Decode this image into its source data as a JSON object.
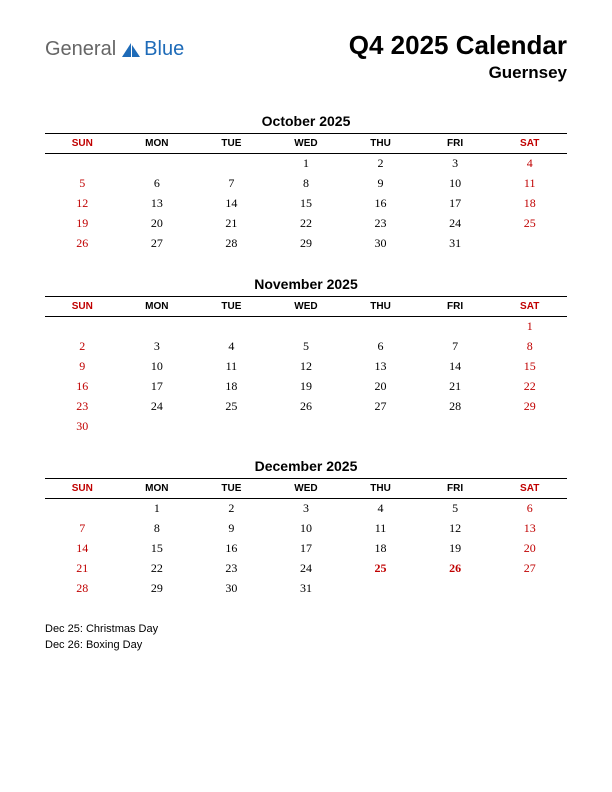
{
  "logo": {
    "text_general": "General",
    "text_blue": "Blue",
    "icon_color": "#1e6bb8"
  },
  "header": {
    "title": "Q4 2025 Calendar",
    "subtitle": "Guernsey"
  },
  "day_headers": [
    "SUN",
    "MON",
    "TUE",
    "WED",
    "THU",
    "FRI",
    "SAT"
  ],
  "colors": {
    "weekend": "#c00000",
    "holiday": "#c00000",
    "text": "#000000",
    "rule": "#000000",
    "logo_gray": "#666666",
    "logo_blue": "#1e6bb8",
    "background": "#ffffff"
  },
  "typography": {
    "title_fontsize": 26,
    "subtitle_fontsize": 17,
    "month_title_fontsize": 14,
    "header_fontsize": 10,
    "cell_fontsize": 12,
    "holiday_list_fontsize": 11,
    "logo_fontsize": 20
  },
  "months": [
    {
      "title": "October 2025",
      "weeks": [
        [
          "",
          "",
          "",
          "1",
          "2",
          "3",
          "4"
        ],
        [
          "5",
          "6",
          "7",
          "8",
          "9",
          "10",
          "11"
        ],
        [
          "12",
          "13",
          "14",
          "15",
          "16",
          "17",
          "18"
        ],
        [
          "19",
          "20",
          "21",
          "22",
          "23",
          "24",
          "25"
        ],
        [
          "26",
          "27",
          "28",
          "29",
          "30",
          "31",
          ""
        ]
      ],
      "holidays": []
    },
    {
      "title": "November 2025",
      "weeks": [
        [
          "",
          "",
          "",
          "",
          "",
          "",
          "1"
        ],
        [
          "2",
          "3",
          "4",
          "5",
          "6",
          "7",
          "8"
        ],
        [
          "9",
          "10",
          "11",
          "12",
          "13",
          "14",
          "15"
        ],
        [
          "16",
          "17",
          "18",
          "19",
          "20",
          "21",
          "22"
        ],
        [
          "23",
          "24",
          "25",
          "26",
          "27",
          "28",
          "29"
        ],
        [
          "30",
          "",
          "",
          "",
          "",
          "",
          ""
        ]
      ],
      "holidays": []
    },
    {
      "title": "December 2025",
      "weeks": [
        [
          "",
          "1",
          "2",
          "3",
          "4",
          "5",
          "6"
        ],
        [
          "7",
          "8",
          "9",
          "10",
          "11",
          "12",
          "13"
        ],
        [
          "14",
          "15",
          "16",
          "17",
          "18",
          "19",
          "20"
        ],
        [
          "21",
          "22",
          "23",
          "24",
          "25",
          "26",
          "27"
        ],
        [
          "28",
          "29",
          "30",
          "31",
          "",
          "",
          ""
        ]
      ],
      "holidays": [
        "25",
        "26"
      ]
    }
  ],
  "holiday_list": [
    "Dec 25: Christmas Day",
    "Dec 26: Boxing Day"
  ]
}
